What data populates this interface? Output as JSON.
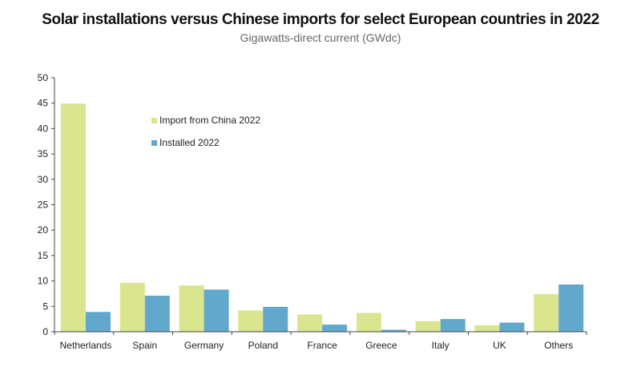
{
  "chart_data": {
    "type": "bar",
    "title": "Solar installations versus Chinese imports for select European countries in 2022",
    "subtitle": "Gigawatts-direct current (GWdc)",
    "xlabel": "",
    "ylabel": "",
    "ylim": [
      0,
      50
    ],
    "yticks": [
      "0",
      "5",
      "10",
      "15",
      "20",
      "25",
      "30",
      "35",
      "40",
      "45",
      "50"
    ],
    "categories": [
      "Netherlands",
      "Spain",
      "Germany",
      "Poland",
      "France",
      "Greece",
      "Italy",
      "UK",
      "Others"
    ],
    "series": [
      {
        "name": "Import from China 2022",
        "color": "#dbe48f",
        "values": [
          44.9,
          9.6,
          9.1,
          4.2,
          3.4,
          3.7,
          2.1,
          1.3,
          7.4
        ]
      },
      {
        "name": "Installed 2022",
        "color": "#62a8cc",
        "values": [
          3.9,
          7.1,
          8.3,
          4.9,
          1.4,
          0.4,
          2.5,
          1.8,
          9.3
        ]
      }
    ],
    "grid": false,
    "legend": "upper-left inside plot"
  }
}
